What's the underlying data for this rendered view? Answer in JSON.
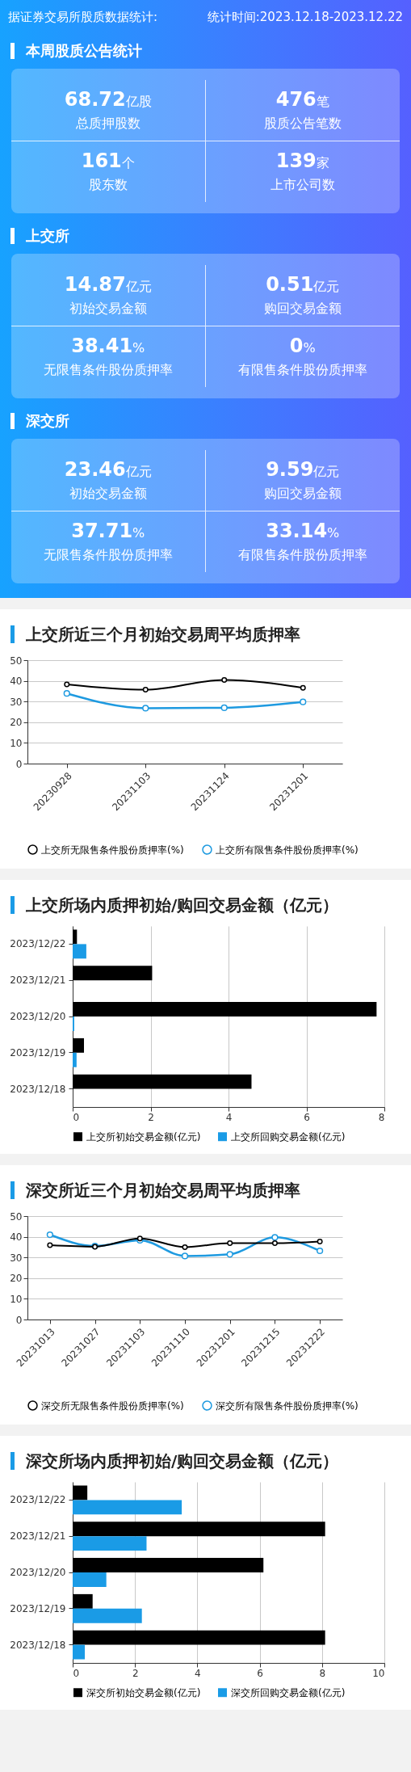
{
  "chart_data": [
    {
      "type": "other",
      "title": "据证券交易所股质数据统计:",
      "subtitle": "统计时间:2023.12.18-2023.12.22"
    },
    {
      "type": "other",
      "title": "本周股质公告统计",
      "annotations": [
        "68.72亿股",
        "总质押股数",
        "476笔",
        "股质公告笔数",
        "161个",
        "股东数",
        "139家",
        "上市公司数"
      ]
    },
    {
      "type": "other",
      "title": "上交所",
      "annotations": [
        "14.87亿元",
        "初始交易金额",
        "0.51亿元",
        "购回交易金额",
        "38.41%",
        "无限售条件股份质押率",
        "0%",
        "有限售条件股份质押率"
      ]
    },
    {
      "type": "other",
      "title": "深交所",
      "annotations": [
        "23.46亿元",
        "初始交易金额",
        "9.59亿元",
        "购回交易金额",
        "37.71%",
        "无限售条件股份质押率",
        "33.14%",
        "有限售条件股份质押率"
      ]
    },
    {
      "type": "line",
      "title": "上交所近三个月初始交易周平均质押率",
      "categories": [
        "20230928",
        "20231103",
        "20231124",
        "20231201"
      ],
      "series": [
        {
          "name": "上交所无限售条件股份质押率(%)",
          "color": "#000000",
          "values": [
            38.3,
            35.7,
            40.4,
            36.6
          ]
        },
        {
          "name": "上交所有限售条件股份质押率(%)",
          "color": "#1e9ae0",
          "values": [
            33.9,
            26.8,
            27.0,
            29.8
          ]
        }
      ],
      "ylim": [
        0,
        50
      ],
      "yticks": [
        0,
        10,
        20,
        30,
        40,
        50
      ],
      "grid": "y",
      "legend": "bottom",
      "marker": "circle"
    },
    {
      "type": "bar",
      "orientation": "horizontal",
      "title": "上交所场内质押初始/购回交易金额（亿元）",
      "categories": [
        "2023/12/22",
        "2023/12/21",
        "2023/12/20",
        "2023/12/19",
        "2023/12/18"
      ],
      "series": [
        {
          "name": "上交所初始交易金额(亿元)",
          "color": "#000000",
          "values": [
            0.11,
            2.04,
            7.8,
            0.29,
            4.59
          ]
        },
        {
          "name": "上交所回购交易金额(亿元)",
          "color": "#1a9be6",
          "values": [
            0.35,
            0,
            0.04,
            0.1,
            0
          ]
        }
      ],
      "xlim": [
        0,
        8
      ],
      "xticks": [
        0,
        2,
        4,
        6,
        8
      ],
      "grid": "x",
      "legend": "bottom"
    },
    {
      "type": "line",
      "title": "深交所近三个月初始交易周平均质押率",
      "categories": [
        "20231013",
        "20231027",
        "20231103",
        "20231110",
        "20231201",
        "20231215",
        "20231222"
      ],
      "series": [
        {
          "name": "深交所无限售条件股份质押率(%)",
          "color": "#000000",
          "values": [
            35.9,
            35.2,
            39.2,
            35.0,
            36.9,
            36.9,
            37.7
          ]
        },
        {
          "name": "深交所有限售条件股份质押率(%)",
          "color": "#1e9ae0",
          "values": [
            41.0,
            35.5,
            38.3,
            30.7,
            31.5,
            39.7,
            33.2
          ]
        }
      ],
      "ylim": [
        0,
        50
      ],
      "yticks": [
        0,
        10,
        20,
        30,
        40,
        50
      ],
      "grid": "y",
      "legend": "bottom",
      "marker": "circle"
    },
    {
      "type": "bar",
      "orientation": "horizontal",
      "title": "深交所场内质押初始/购回交易金额（亿元）",
      "categories": [
        "2023/12/22",
        "2023/12/21",
        "2023/12/20",
        "2023/12/19",
        "2023/12/18"
      ],
      "series": [
        {
          "name": "深交所初始交易金额(亿元)",
          "color": "#000000",
          "values": [
            0.47,
            8.1,
            6.12,
            0.64,
            8.1
          ]
        },
        {
          "name": "深交所回购交易金额(亿元)",
          "color": "#1a9be6",
          "values": [
            3.5,
            2.37,
            1.08,
            2.22,
            0.39
          ]
        }
      ],
      "xlim": [
        0,
        10
      ],
      "xticks": [
        0,
        2,
        4,
        6,
        8,
        10
      ],
      "grid": "x",
      "legend": "bottom"
    }
  ]
}
